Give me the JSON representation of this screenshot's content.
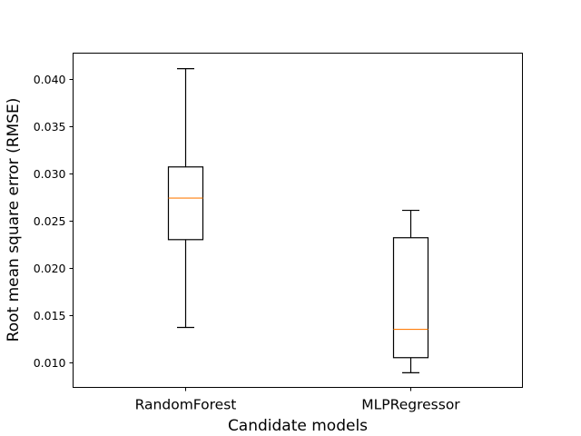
{
  "chart_data": {
    "type": "boxplot",
    "title": "",
    "xlabel": "Candidate models",
    "ylabel": "Root mean square error (RMSE)",
    "categories": [
      "RandomForest",
      "MLPRegressor"
    ],
    "boxes": [
      {
        "label": "RandomForest",
        "whisker_low": 0.0137,
        "q1": 0.023,
        "median": 0.0274,
        "q3": 0.0307,
        "whisker_high": 0.0411
      },
      {
        "label": "MLPRegressor",
        "whisker_low": 0.0089,
        "q1": 0.0105,
        "median": 0.0135,
        "q3": 0.0232,
        "whisker_high": 0.0261
      }
    ],
    "ylim": [
      0.00735,
      0.04275
    ],
    "yticks": [
      0.01,
      0.015,
      0.02,
      0.025,
      0.03,
      0.035,
      0.04
    ],
    "ytick_labels": [
      "0.010",
      "0.015",
      "0.020",
      "0.025",
      "0.030",
      "0.035",
      "0.040"
    ],
    "grid": false,
    "colors": {
      "box": "#000000",
      "median": "#ff7f0e",
      "background": "#ffffff"
    }
  }
}
